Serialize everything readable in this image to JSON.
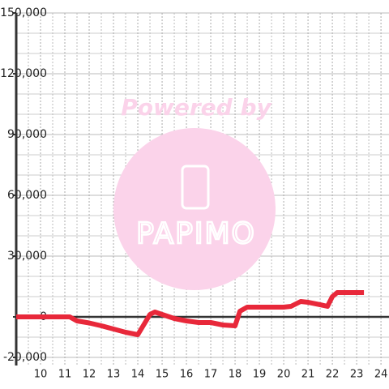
{
  "chart_data": {
    "type": "line",
    "watermark": {
      "title": "Powered by",
      "logo": "PAPIMO"
    },
    "x": [
      9,
      11.2,
      11.5,
      12,
      12.5,
      13,
      13.5,
      14,
      14.5,
      14.7,
      15,
      15.5,
      16,
      16.5,
      17,
      17.5,
      18,
      18.2,
      18.5,
      19,
      20,
      20.3,
      20.7,
      21,
      21.5,
      21.8,
      22,
      22.2,
      23.3
    ],
    "series": [
      {
        "color": "#e8283a",
        "values": [
          0,
          0,
          -2000,
          -3000,
          -4400,
          -6000,
          -7600,
          -8800,
          1200,
          2400,
          1200,
          -800,
          -2000,
          -2800,
          -2800,
          -4000,
          -4400,
          2800,
          4800,
          4800,
          4800,
          5200,
          7600,
          7200,
          6000,
          5200,
          10000,
          12000,
          12000
        ]
      }
    ],
    "xlim": [
      9,
      24.33
    ],
    "xticks": [
      10,
      11,
      12,
      13,
      14,
      15,
      16,
      17,
      18,
      19,
      20,
      21,
      22,
      23,
      24
    ],
    "x_minor_ticks": [
      9.5,
      10.5,
      11.5,
      12.5,
      13.5,
      14.5,
      15.5,
      16.5,
      17.5,
      18.5,
      19.5,
      20.5,
      21.5,
      22.5,
      23.5
    ],
    "ylim": [
      -24000,
      150000
    ],
    "yticks": [
      {
        "value": -20000,
        "label": "-20,000"
      },
      0,
      {
        "value": 30000,
        "label": "30,000"
      },
      {
        "value": 60000,
        "label": "60,000"
      },
      {
        "value": 90000,
        "label": "90,000"
      },
      {
        "value": 120000,
        "label": "120,000"
      },
      {
        "value": 150000,
        "label": "150,000"
      }
    ],
    "y_minor_ticks": [
      -10000,
      10000,
      20000,
      40000,
      50000,
      70000,
      80000,
      100000,
      110000,
      130000,
      140000
    ],
    "grid": true
  }
}
